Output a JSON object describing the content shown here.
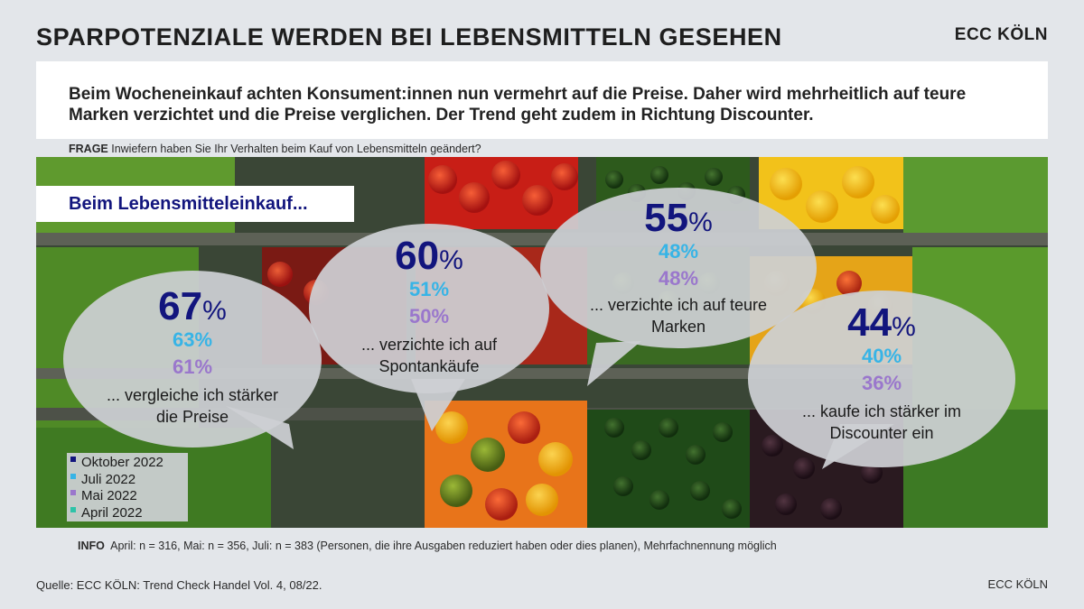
{
  "header": {
    "title": "SPARPOTENZIALE WERDEN BEI LEBENSMITTELN GESEHEN",
    "brand": "ECC KÖLN"
  },
  "lead": {
    "text": "Beim Wocheneinkauf achten Konsument:innen nun vermehrt auf die Preise. Daher wird mehrheitlich auf teure Marken verzichtet und die Preise verglichen. Der Trend geht zudem in Richtung Discounter."
  },
  "question": {
    "label": "FRAGE",
    "text": "Inwiefern haben Sie Ihr Verhalten beim Kauf von Lebensmitteln geändert?"
  },
  "scene_title": "Beim Lebensmitteleinkauf...",
  "percent_sign": "%",
  "colors": {
    "oktober": "#12157d",
    "juli": "#37b4e6",
    "mai": "#9a77cc",
    "april": "#2ec3a8",
    "bubble": "#cdd0d4"
  },
  "chart_data": {
    "type": "bubble-infographic",
    "title": "SPARPOTENZIALE WERDEN BEI LEBENSMITTELN GESEHEN",
    "categories": [
      "... vergleiche ich stärker die Preise",
      "... verzichte ich auf Spontankäufe",
      "... verzichte ich auf teure Marken",
      "... kaufe ich stärker im Discounter ein"
    ],
    "series": [
      {
        "name": "Oktober 2022",
        "values": [
          67,
          60,
          55,
          44
        ]
      },
      {
        "name": "Juli 2022",
        "values": [
          63,
          51,
          48,
          40
        ]
      },
      {
        "name": "Mai 2022",
        "values": [
          61,
          50,
          48,
          36
        ]
      },
      {
        "name": "April 2022",
        "values": [
          null,
          null,
          null,
          null
        ]
      }
    ],
    "unit": "%"
  },
  "bubbles": [
    {
      "main": "67",
      "juli": "63%",
      "mai": "61%",
      "caption_line1": "... vergleiche ich stärker",
      "caption_line2": "die Preise"
    },
    {
      "main": "60",
      "juli": "51%",
      "mai": "50%",
      "caption_line1": "... verzichte ich auf",
      "caption_line2": "Spontankäufe"
    },
    {
      "main": "55",
      "juli": "48%",
      "mai": "48%",
      "caption_line1": "... verzichte ich auf teure",
      "caption_line2": "Marken"
    },
    {
      "main": "44",
      "juli": "40%",
      "mai": "36%",
      "caption_line1": "... kaufe ich stärker im",
      "caption_line2": "Discounter ein"
    }
  ],
  "legend": [
    {
      "label": "Oktober 2022"
    },
    {
      "label": "Juli 2022"
    },
    {
      "label": "Mai 2022"
    },
    {
      "label": "April 2022"
    }
  ],
  "info": {
    "label": "INFO",
    "text": "April: n = 316, Mai: n = 356, Juli: n = 383 (Personen, die ihre Ausgaben reduziert haben oder dies planen), Mehrfachnennung möglich"
  },
  "footer": {
    "source": "Quelle: ECC KÖLN: Trend Check Handel Vol. 4, 08/22.",
    "brand": "ECC KÖLN"
  }
}
